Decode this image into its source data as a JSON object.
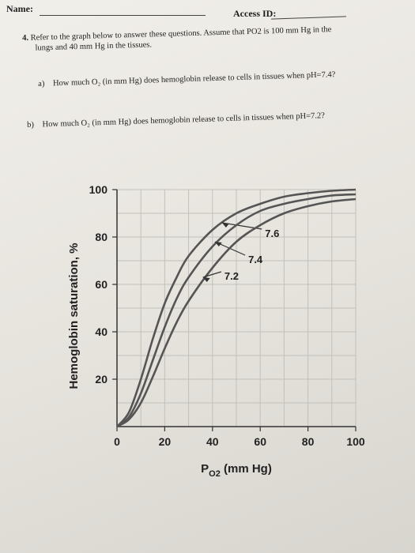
{
  "header": {
    "name_label": "Name:",
    "access_label": "Access ID:"
  },
  "question": {
    "number": "4.",
    "text_line1": "Refer to the graph below to answer these questions. Assume that PO2 is 100 mm Hg in the",
    "text_line2": "lungs and 40 mm Hg in the tissues.",
    "parts": [
      {
        "label": "a)",
        "text": "How much O₂ (in mm Hg) does hemoglobin release to cells in tissues when pH=7.4?"
      },
      {
        "label": "b)",
        "text": "How much O₂ (in mm Hg) does hemoglobin release to cells in tissues when pH=7.2?"
      }
    ]
  },
  "chart_data": {
    "type": "line",
    "title": "",
    "xlabel": "P",
    "xlabel_sub": "O2",
    "xlabel_unit": " (mm Hg)",
    "ylabel": "Hemoglobin saturation, %",
    "xlim": [
      0,
      100
    ],
    "ylim": [
      0,
      100
    ],
    "x_ticks": [
      0,
      20,
      40,
      60,
      80,
      100
    ],
    "y_ticks": [
      20,
      40,
      60,
      80,
      100
    ],
    "grid": true,
    "series": [
      {
        "name": "7.6",
        "x": [
          0,
          5,
          10,
          15,
          20,
          25,
          30,
          40,
          50,
          60,
          70,
          80,
          90,
          100
        ],
        "y": [
          0,
          6,
          20,
          37,
          52,
          63,
          72,
          83,
          90,
          94,
          97,
          98.5,
          99.5,
          100
        ]
      },
      {
        "name": "7.4",
        "x": [
          0,
          5,
          10,
          15,
          20,
          25,
          30,
          40,
          50,
          60,
          70,
          80,
          90,
          100
        ],
        "y": [
          0,
          4,
          14,
          28,
          42,
          54,
          63,
          76,
          85,
          91,
          94,
          96,
          97.5,
          98
        ]
      },
      {
        "name": "7.2",
        "x": [
          0,
          5,
          10,
          15,
          20,
          25,
          30,
          40,
          50,
          60,
          70,
          80,
          90,
          100
        ],
        "y": [
          0,
          3,
          10,
          21,
          33,
          44,
          53,
          67,
          78,
          85,
          90,
          93,
          95,
          96
        ]
      }
    ]
  }
}
